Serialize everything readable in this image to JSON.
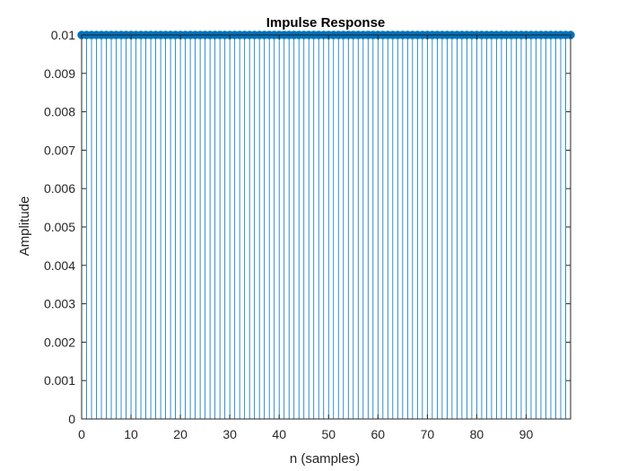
{
  "chart_data": {
    "type": "stem",
    "title": "Impulse Response",
    "xlabel": "n (samples)",
    "ylabel": "Amplitude",
    "x": [
      0,
      1,
      2,
      3,
      4,
      5,
      6,
      7,
      8,
      9,
      10,
      11,
      12,
      13,
      14,
      15,
      16,
      17,
      18,
      19,
      20,
      21,
      22,
      23,
      24,
      25,
      26,
      27,
      28,
      29,
      30,
      31,
      32,
      33,
      34,
      35,
      36,
      37,
      38,
      39,
      40,
      41,
      42,
      43,
      44,
      45,
      46,
      47,
      48,
      49,
      50,
      51,
      52,
      53,
      54,
      55,
      56,
      57,
      58,
      59,
      60,
      61,
      62,
      63,
      64,
      65,
      66,
      67,
      68,
      69,
      70,
      71,
      72,
      73,
      74,
      75,
      76,
      77,
      78,
      79,
      80,
      81,
      82,
      83,
      84,
      85,
      86,
      87,
      88,
      89,
      90,
      91,
      92,
      93,
      94,
      95,
      96,
      97,
      98,
      99
    ],
    "y": [
      0.01,
      0.01,
      0.01,
      0.01,
      0.01,
      0.01,
      0.01,
      0.01,
      0.01,
      0.01,
      0.01,
      0.01,
      0.01,
      0.01,
      0.01,
      0.01,
      0.01,
      0.01,
      0.01,
      0.01,
      0.01,
      0.01,
      0.01,
      0.01,
      0.01,
      0.01,
      0.01,
      0.01,
      0.01,
      0.01,
      0.01,
      0.01,
      0.01,
      0.01,
      0.01,
      0.01,
      0.01,
      0.01,
      0.01,
      0.01,
      0.01,
      0.01,
      0.01,
      0.01,
      0.01,
      0.01,
      0.01,
      0.01,
      0.01,
      0.01,
      0.01,
      0.01,
      0.01,
      0.01,
      0.01,
      0.01,
      0.01,
      0.01,
      0.01,
      0.01,
      0.01,
      0.01,
      0.01,
      0.01,
      0.01,
      0.01,
      0.01,
      0.01,
      0.01,
      0.01,
      0.01,
      0.01,
      0.01,
      0.01,
      0.01,
      0.01,
      0.01,
      0.01,
      0.01,
      0.01,
      0.01,
      0.01,
      0.01,
      0.01,
      0.01,
      0.01,
      0.01,
      0.01,
      0.01,
      0.01,
      0.01,
      0.01,
      0.01,
      0.01,
      0.01,
      0.01,
      0.01,
      0.01,
      0.01,
      0.01
    ],
    "xlim": [
      0,
      99
    ],
    "ylim": [
      0,
      0.01
    ],
    "xticks": [
      0,
      10,
      20,
      30,
      40,
      50,
      60,
      70,
      80,
      90
    ],
    "xtick_labels": [
      "0",
      "10",
      "20",
      "30",
      "40",
      "50",
      "60",
      "70",
      "80",
      "90"
    ],
    "yticks": [
      0,
      0.001,
      0.002,
      0.003,
      0.004,
      0.005,
      0.006,
      0.007,
      0.008,
      0.009,
      0.01
    ],
    "ytick_labels": [
      "0",
      "0.001",
      "0.002",
      "0.003",
      "0.004",
      "0.005",
      "0.006",
      "0.007",
      "0.008",
      "0.009",
      "0.01"
    ],
    "grid": false,
    "colors": {
      "stem": "#0072BD",
      "axis": "#262626"
    }
  }
}
